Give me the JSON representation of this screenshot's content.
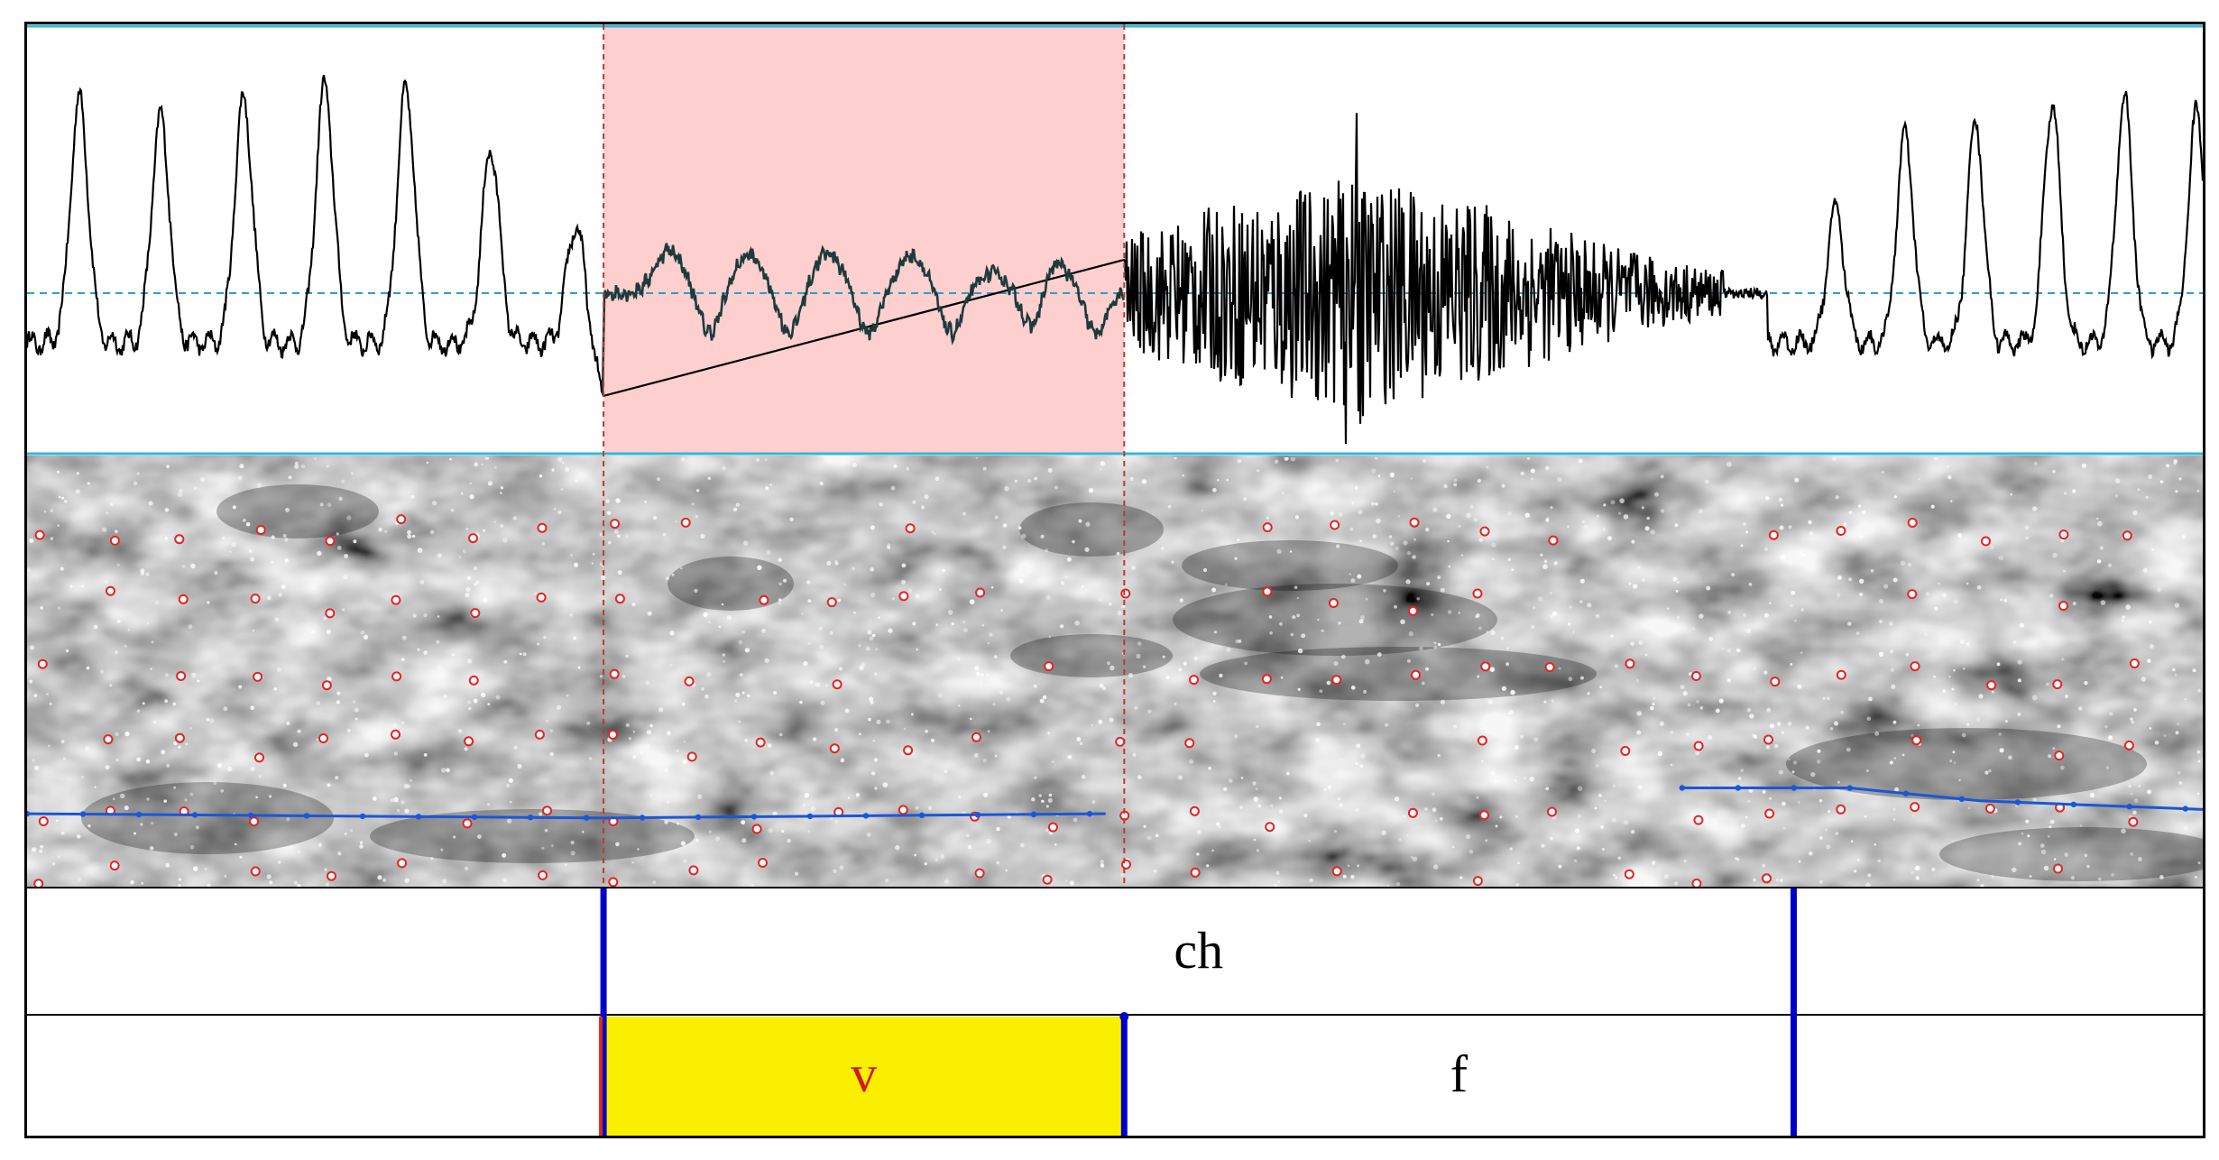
{
  "selection": {
    "start_sec": 0.31,
    "end_sec": 0.59
  },
  "view": {
    "start_sec": 0.0,
    "end_sec": 1.17
  },
  "colors": {
    "selection_fill": "#fdcfcf",
    "selection_edge": "#c0392b",
    "waveform": "#000000",
    "selected_waveform": "#1d3b3b",
    "zero_line": "#2aa0c8",
    "pane_border": "#35b6d8",
    "pitch": "#1a56d8",
    "formant": "#e52424",
    "boundary": "#0000cc",
    "cursor_boundary": "#e0261a",
    "interval_highlight": "#fbef00",
    "label_red": "#d11a1a",
    "label_black": "#000000"
  },
  "pitch_track": [
    {
      "segment": 1,
      "points": [
        [
          0.0,
          0.83
        ],
        [
          0.31,
          0.84
        ],
        [
          0.58,
          0.83
        ]
      ]
    },
    {
      "segment": 2,
      "points": [
        [
          0.89,
          0.77
        ],
        [
          0.98,
          0.77
        ],
        [
          1.05,
          0.8
        ],
        [
          1.17,
          0.82
        ]
      ]
    }
  ],
  "tiers": [
    {
      "name": "tier-1",
      "intervals": [
        {
          "start_sec": 0.0,
          "end_sec": 0.31,
          "text": ""
        },
        {
          "start_sec": 0.31,
          "end_sec": 0.95,
          "text": "ch",
          "color": "#000000"
        },
        {
          "start_sec": 0.95,
          "end_sec": 1.17,
          "text": ""
        }
      ]
    },
    {
      "name": "tier-2",
      "intervals": [
        {
          "start_sec": 0.0,
          "end_sec": 0.31,
          "text": ""
        },
        {
          "start_sec": 0.31,
          "end_sec": 0.59,
          "text": "v",
          "color": "#d11a1a",
          "highlighted": true
        },
        {
          "start_sec": 0.59,
          "end_sec": 0.95,
          "text": "f",
          "color": "#000000"
        },
        {
          "start_sec": 0.95,
          "end_sec": 1.17,
          "text": ""
        }
      ]
    }
  ]
}
